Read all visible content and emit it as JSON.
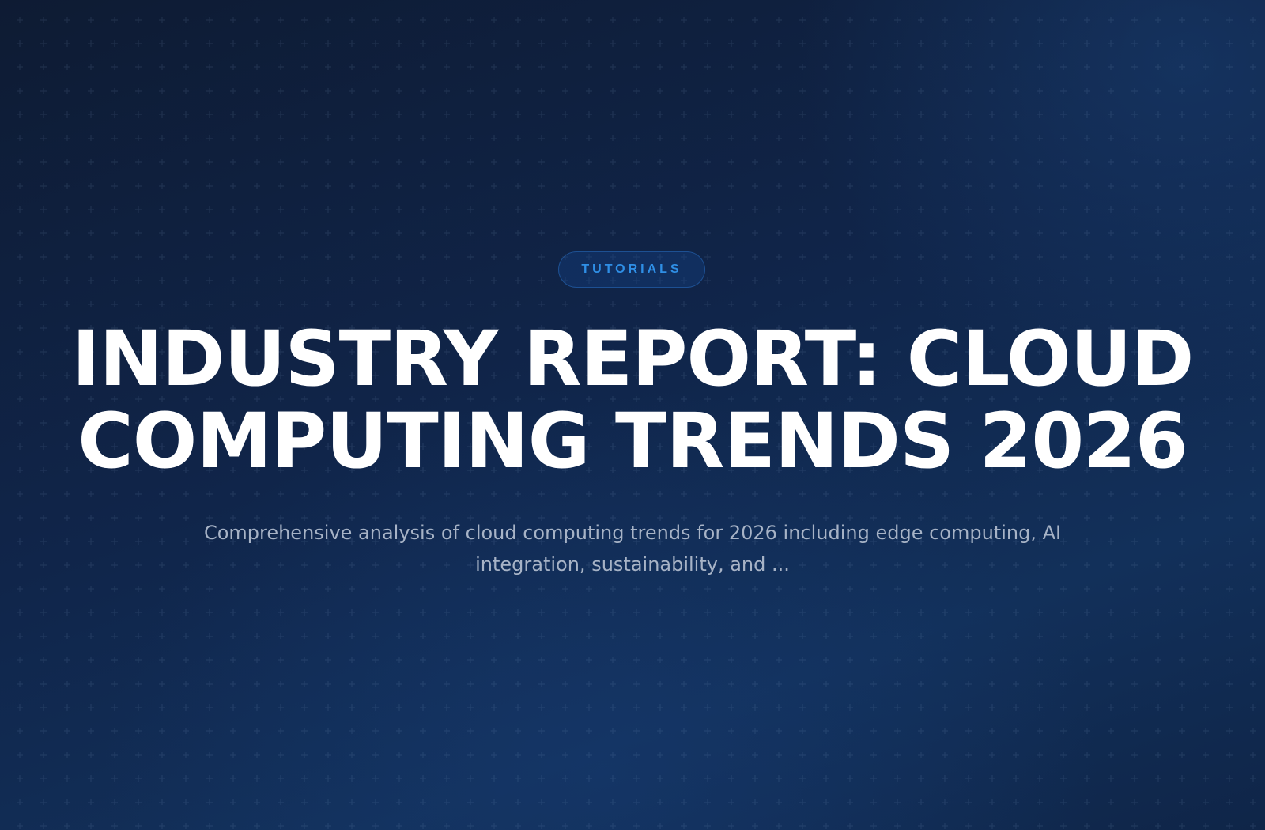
{
  "hero": {
    "badge": "TUTORIALS",
    "title": "INDUSTRY REPORT: CLOUD COMPUTING TRENDS 2026",
    "subtitle": "Comprehensive analysis of cloud computing trends for 2026 including edge computing, AI integration, sustainability, and ..."
  },
  "colors": {
    "background_dark": "#0e1b33",
    "background_light": "#12305a",
    "accent": "#2f8fe6",
    "title_text": "#ffffff",
    "subtitle_text": "#a7b3c6"
  }
}
